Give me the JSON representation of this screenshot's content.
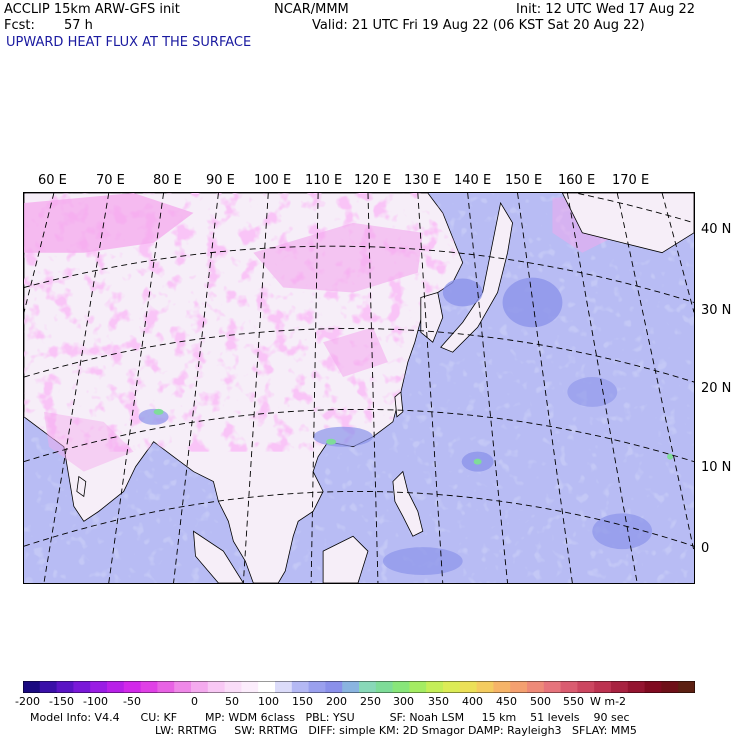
{
  "header": {
    "model_line": "ACCLIP 15km ARW-GFS init",
    "center": "NCAR/MMM",
    "init": "Init: 12 UTC Wed 17 Aug 22",
    "fcst_label": "Fcst:",
    "fcst_value": "57 h",
    "valid": "Valid: 21 UTC Fri 19 Aug 22 (06 KST Sat 20 Aug 22)",
    "field_title": "UPWARD HEAT FLUX AT THE SURFACE"
  },
  "map": {
    "lon_labels": [
      "60 E",
      "70 E",
      "80 E",
      "90 E",
      "100 E",
      "110 E",
      "120 E",
      "130 E",
      "140 E",
      "150 E",
      "160 E",
      "170 E"
    ],
    "lat_labels": [
      "40 N",
      "30 N",
      "20 N",
      "10 N",
      "0"
    ],
    "colors": {
      "ocean": "#b8bcf4",
      "land_light": "#f6eef8",
      "land_pink": "#f4a8ee",
      "ocean_dark": "#8c94ea",
      "green": "#7fdc9a"
    }
  },
  "colorbar": {
    "ticks": [
      "-200",
      "-150",
      "-100",
      "-50",
      "0",
      "50",
      "100",
      "150",
      "200",
      "250",
      "300",
      "350",
      "400",
      "450",
      "500",
      "550"
    ],
    "unit": "W m-2",
    "colors": [
      "#1a0a80",
      "#3a10a8",
      "#5a14c4",
      "#7a18d8",
      "#9a1ce4",
      "#b820e8",
      "#d228ea",
      "#e040e6",
      "#e862e4",
      "#ef88e8",
      "#f4aaee",
      "#f8c8f4",
      "#faddf8",
      "#fcedfc",
      "#ffffff",
      "#dcdcfa",
      "#b4b8f4",
      "#9aa0ee",
      "#8a90ea",
      "#8ab4e0",
      "#88d8b8",
      "#7edc98",
      "#88e67a",
      "#a4ec62",
      "#c4ee58",
      "#dcec56",
      "#ece058",
      "#f4cc60",
      "#f6b468",
      "#f4a070",
      "#ee8a78",
      "#e6747c",
      "#da5c70",
      "#cc4660",
      "#bc3250",
      "#a82240",
      "#941430",
      "#800a20",
      "#6e1018",
      "#5c2012"
    ]
  },
  "footer": {
    "line1": "Model Info: V4.4      CU: KF        MP: WDM 6class   PBL: YSU          SF: Noah LSM     15 km    51 levels    90 sec",
    "line2": "LW: RRTMG     SW: RRTMG   DIFF: simple KM: 2D Smagor DAMP: Rayleigh3   SFLAY: MM5"
  }
}
